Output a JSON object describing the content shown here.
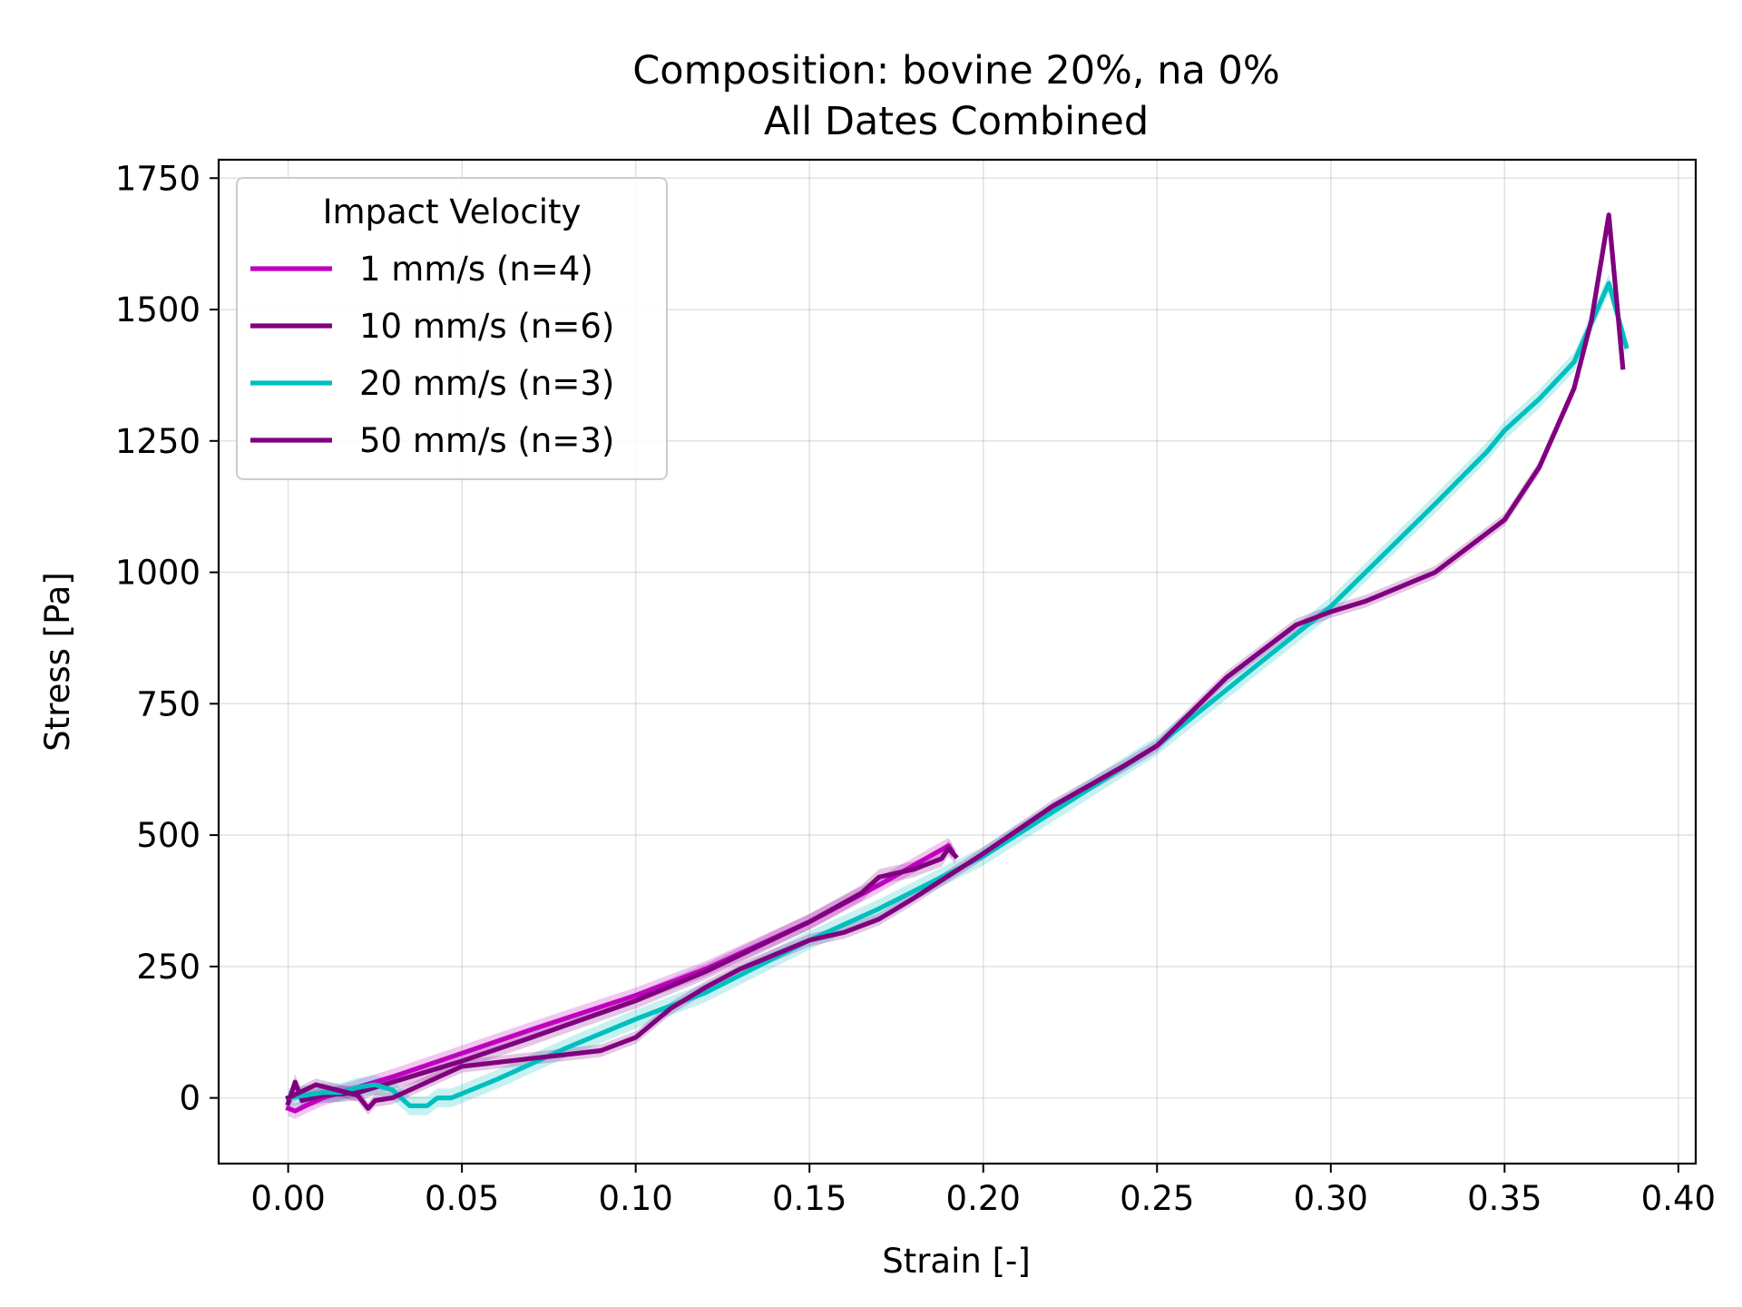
{
  "chart_data": {
    "type": "line",
    "title": "Composition: bovine 20%, na 0%",
    "subtitle": "All Dates Combined",
    "xlabel": "Strain [-]",
    "ylabel": "Stress [Pa]",
    "xlim": [
      -0.02,
      0.405
    ],
    "ylim": [
      -125,
      1785
    ],
    "xticks": [
      0.0,
      0.05,
      0.1,
      0.15,
      0.2,
      0.25,
      0.3,
      0.35,
      0.4
    ],
    "xtick_labels": [
      "0.00",
      "0.05",
      "0.10",
      "0.15",
      "0.20",
      "0.25",
      "0.30",
      "0.35",
      "0.40"
    ],
    "yticks": [
      0,
      250,
      500,
      750,
      1000,
      1250,
      1500,
      1750
    ],
    "ytick_labels": [
      "0",
      "250",
      "500",
      "750",
      "1000",
      "1250",
      "1500",
      "1750"
    ],
    "grid": true,
    "legend": {
      "title": "Impact Velocity",
      "placement": "upper-left"
    },
    "series": [
      {
        "name": "1 mm/s (n=4)",
        "color": "#bf00bf",
        "band": 15,
        "points": [
          [
            0.0,
            -20
          ],
          [
            0.002,
            -25
          ],
          [
            0.005,
            -15
          ],
          [
            0.01,
            0
          ],
          [
            0.02,
            20
          ],
          [
            0.03,
            40
          ],
          [
            0.05,
            85
          ],
          [
            0.07,
            130
          ],
          [
            0.1,
            195
          ],
          [
            0.12,
            245
          ],
          [
            0.15,
            335
          ],
          [
            0.17,
            405
          ],
          [
            0.19,
            480
          ],
          [
            0.191,
            470
          ]
        ]
      },
      {
        "name": "10 mm/s (n=6)",
        "color": "#800080",
        "band": 15,
        "points": [
          [
            0.0,
            -10
          ],
          [
            0.002,
            30
          ],
          [
            0.004,
            -5
          ],
          [
            0.01,
            5
          ],
          [
            0.02,
            10
          ],
          [
            0.03,
            30
          ],
          [
            0.05,
            70
          ],
          [
            0.07,
            115
          ],
          [
            0.1,
            185
          ],
          [
            0.12,
            240
          ],
          [
            0.15,
            335
          ],
          [
            0.165,
            390
          ],
          [
            0.17,
            420
          ],
          [
            0.18,
            435
          ],
          [
            0.188,
            455
          ],
          [
            0.19,
            475
          ],
          [
            0.192,
            460
          ]
        ]
      },
      {
        "name": "20 mm/s (n=3)",
        "color": "#00bfbf",
        "band": 18,
        "points": [
          [
            0.0,
            0
          ],
          [
            0.005,
            5
          ],
          [
            0.01,
            10
          ],
          [
            0.015,
            10
          ],
          [
            0.02,
            20
          ],
          [
            0.025,
            25
          ],
          [
            0.03,
            15
          ],
          [
            0.035,
            -15
          ],
          [
            0.04,
            -15
          ],
          [
            0.043,
            0
          ],
          [
            0.047,
            0
          ],
          [
            0.06,
            35
          ],
          [
            0.08,
            95
          ],
          [
            0.1,
            150
          ],
          [
            0.12,
            200
          ],
          [
            0.15,
            300
          ],
          [
            0.17,
            360
          ],
          [
            0.2,
            460
          ],
          [
            0.25,
            670
          ],
          [
            0.28,
            830
          ],
          [
            0.3,
            935
          ],
          [
            0.33,
            1130
          ],
          [
            0.345,
            1230
          ],
          [
            0.35,
            1270
          ],
          [
            0.36,
            1330
          ],
          [
            0.37,
            1400
          ],
          [
            0.38,
            1550
          ],
          [
            0.385,
            1430
          ]
        ]
      },
      {
        "name": "50 mm/s (n=3)",
        "color": "#800080",
        "band": 12,
        "points": [
          [
            0.0,
            0
          ],
          [
            0.008,
            25
          ],
          [
            0.02,
            5
          ],
          [
            0.023,
            -20
          ],
          [
            0.025,
            -5
          ],
          [
            0.03,
            0
          ],
          [
            0.04,
            30
          ],
          [
            0.05,
            60
          ],
          [
            0.07,
            75
          ],
          [
            0.09,
            90
          ],
          [
            0.1,
            115
          ],
          [
            0.11,
            170
          ],
          [
            0.12,
            210
          ],
          [
            0.13,
            245
          ],
          [
            0.15,
            300
          ],
          [
            0.16,
            315
          ],
          [
            0.17,
            340
          ],
          [
            0.18,
            380
          ],
          [
            0.2,
            465
          ],
          [
            0.22,
            555
          ],
          [
            0.24,
            630
          ],
          [
            0.25,
            670
          ],
          [
            0.27,
            800
          ],
          [
            0.29,
            900
          ],
          [
            0.3,
            925
          ],
          [
            0.31,
            945
          ],
          [
            0.33,
            1000
          ],
          [
            0.35,
            1100
          ],
          [
            0.36,
            1200
          ],
          [
            0.37,
            1350
          ],
          [
            0.375,
            1480
          ],
          [
            0.38,
            1680
          ],
          [
            0.384,
            1390
          ]
        ]
      }
    ]
  }
}
